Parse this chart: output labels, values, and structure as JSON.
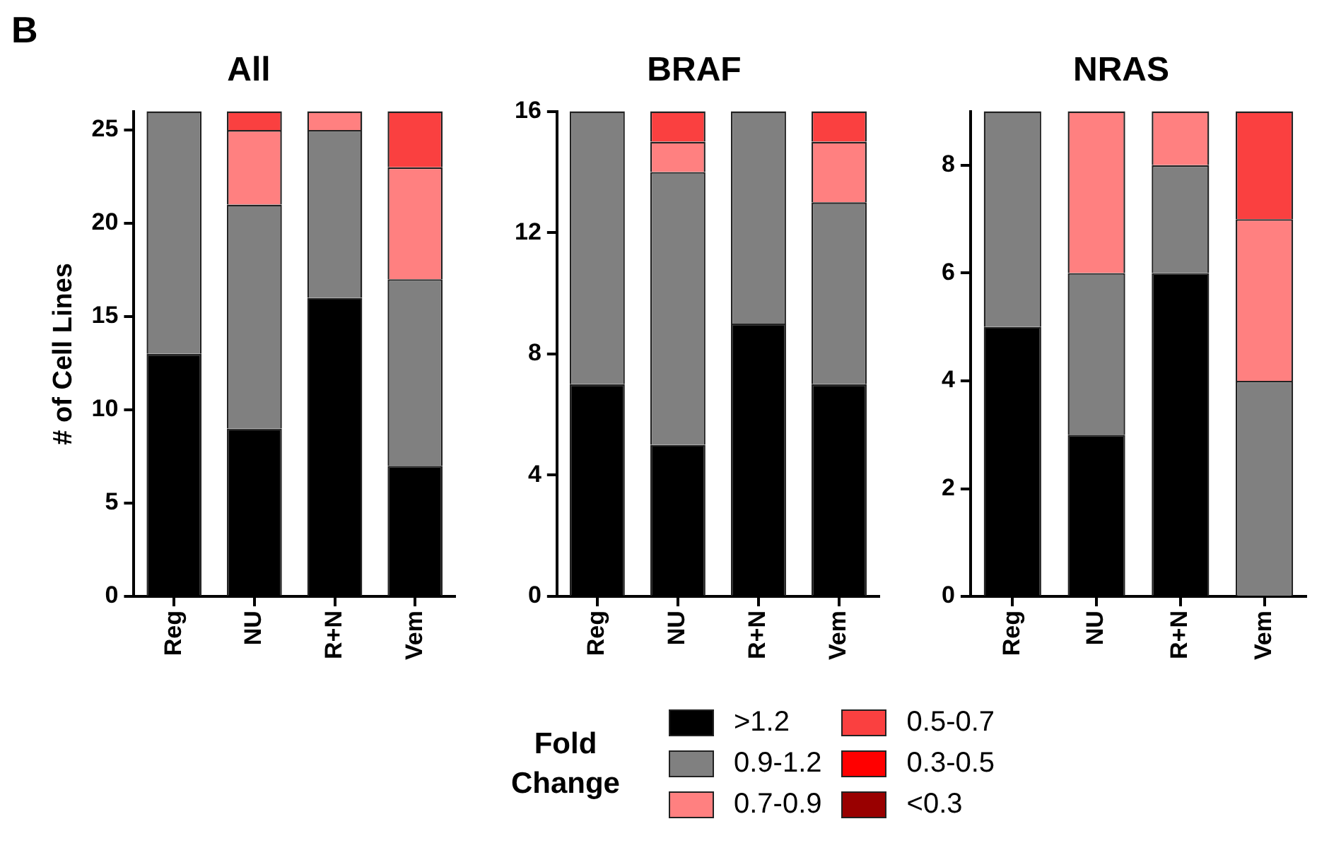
{
  "chart_data": [
    {
      "type": "bar",
      "title": "All",
      "ylabel": "# of Cell Lines",
      "annotations": [
        "B"
      ],
      "stacked": true,
      "grid": false,
      "categories": [
        "Reg",
        "NU",
        "R+N",
        "Vem"
      ],
      "ylim": [
        0,
        26
      ],
      "yticks": [
        0,
        5,
        10,
        15,
        20,
        25
      ],
      "series": [
        {
          "color": "#000000",
          "values": [
            13,
            9,
            16,
            7
          ]
        },
        {
          "color": "#808080",
          "values": [
            13,
            12,
            9,
            10
          ]
        },
        {
          "color": "#ff8080",
          "values": [
            0,
            4,
            1,
            6
          ]
        },
        {
          "color": "#fa4040",
          "values": [
            0,
            1,
            0,
            3
          ]
        },
        {
          "color": "#ff0000",
          "values": [
            0,
            0,
            0,
            0
          ]
        },
        {
          "color": "#990000",
          "values": [
            0,
            0,
            0,
            0
          ]
        }
      ]
    },
    {
      "type": "bar",
      "title": "BRAF",
      "stacked": true,
      "grid": false,
      "legend": "bottom",
      "legend_title": "Fold Change",
      "categories": [
        "Reg",
        "NU",
        "R+N",
        "Vem"
      ],
      "ylim": [
        0,
        16
      ],
      "yticks": [
        0,
        4,
        8,
        12,
        16
      ],
      "series": [
        {
          "name": ">1.2",
          "color": "#000000",
          "values": [
            7,
            5,
            9,
            7
          ]
        },
        {
          "name": "0.9-1.2",
          "color": "#808080",
          "values": [
            9,
            9,
            7,
            6
          ]
        },
        {
          "name": "0.7-0.9",
          "color": "#ff8080",
          "values": [
            0,
            1,
            0,
            2
          ]
        },
        {
          "name": "0.5-0.7",
          "color": "#fa4040",
          "values": [
            0,
            1,
            0,
            1
          ]
        },
        {
          "name": "0.3-0.5",
          "color": "#ff0000",
          "values": [
            0,
            0,
            0,
            0
          ]
        },
        {
          "name": "<0.3",
          "color": "#990000",
          "values": [
            0,
            0,
            0,
            0
          ]
        }
      ]
    },
    {
      "type": "bar",
      "title": "NRAS",
      "stacked": true,
      "grid": false,
      "categories": [
        "Reg",
        "NU",
        "R+N",
        "Vem"
      ],
      "ylim": [
        0,
        9
      ],
      "yticks": [
        0,
        2,
        4,
        6,
        8
      ],
      "series": [
        {
          "color": "#000000",
          "values": [
            5,
            3,
            6,
            0
          ]
        },
        {
          "color": "#808080",
          "values": [
            4,
            3,
            2,
            4
          ]
        },
        {
          "color": "#ff8080",
          "values": [
            0,
            3,
            1,
            3
          ]
        },
        {
          "color": "#fa4040",
          "values": [
            0,
            0,
            0,
            2
          ]
        },
        {
          "color": "#ff0000",
          "values": [
            0,
            0,
            0,
            0
          ]
        },
        {
          "color": "#990000",
          "values": [
            0,
            0,
            0,
            0
          ]
        }
      ]
    }
  ]
}
